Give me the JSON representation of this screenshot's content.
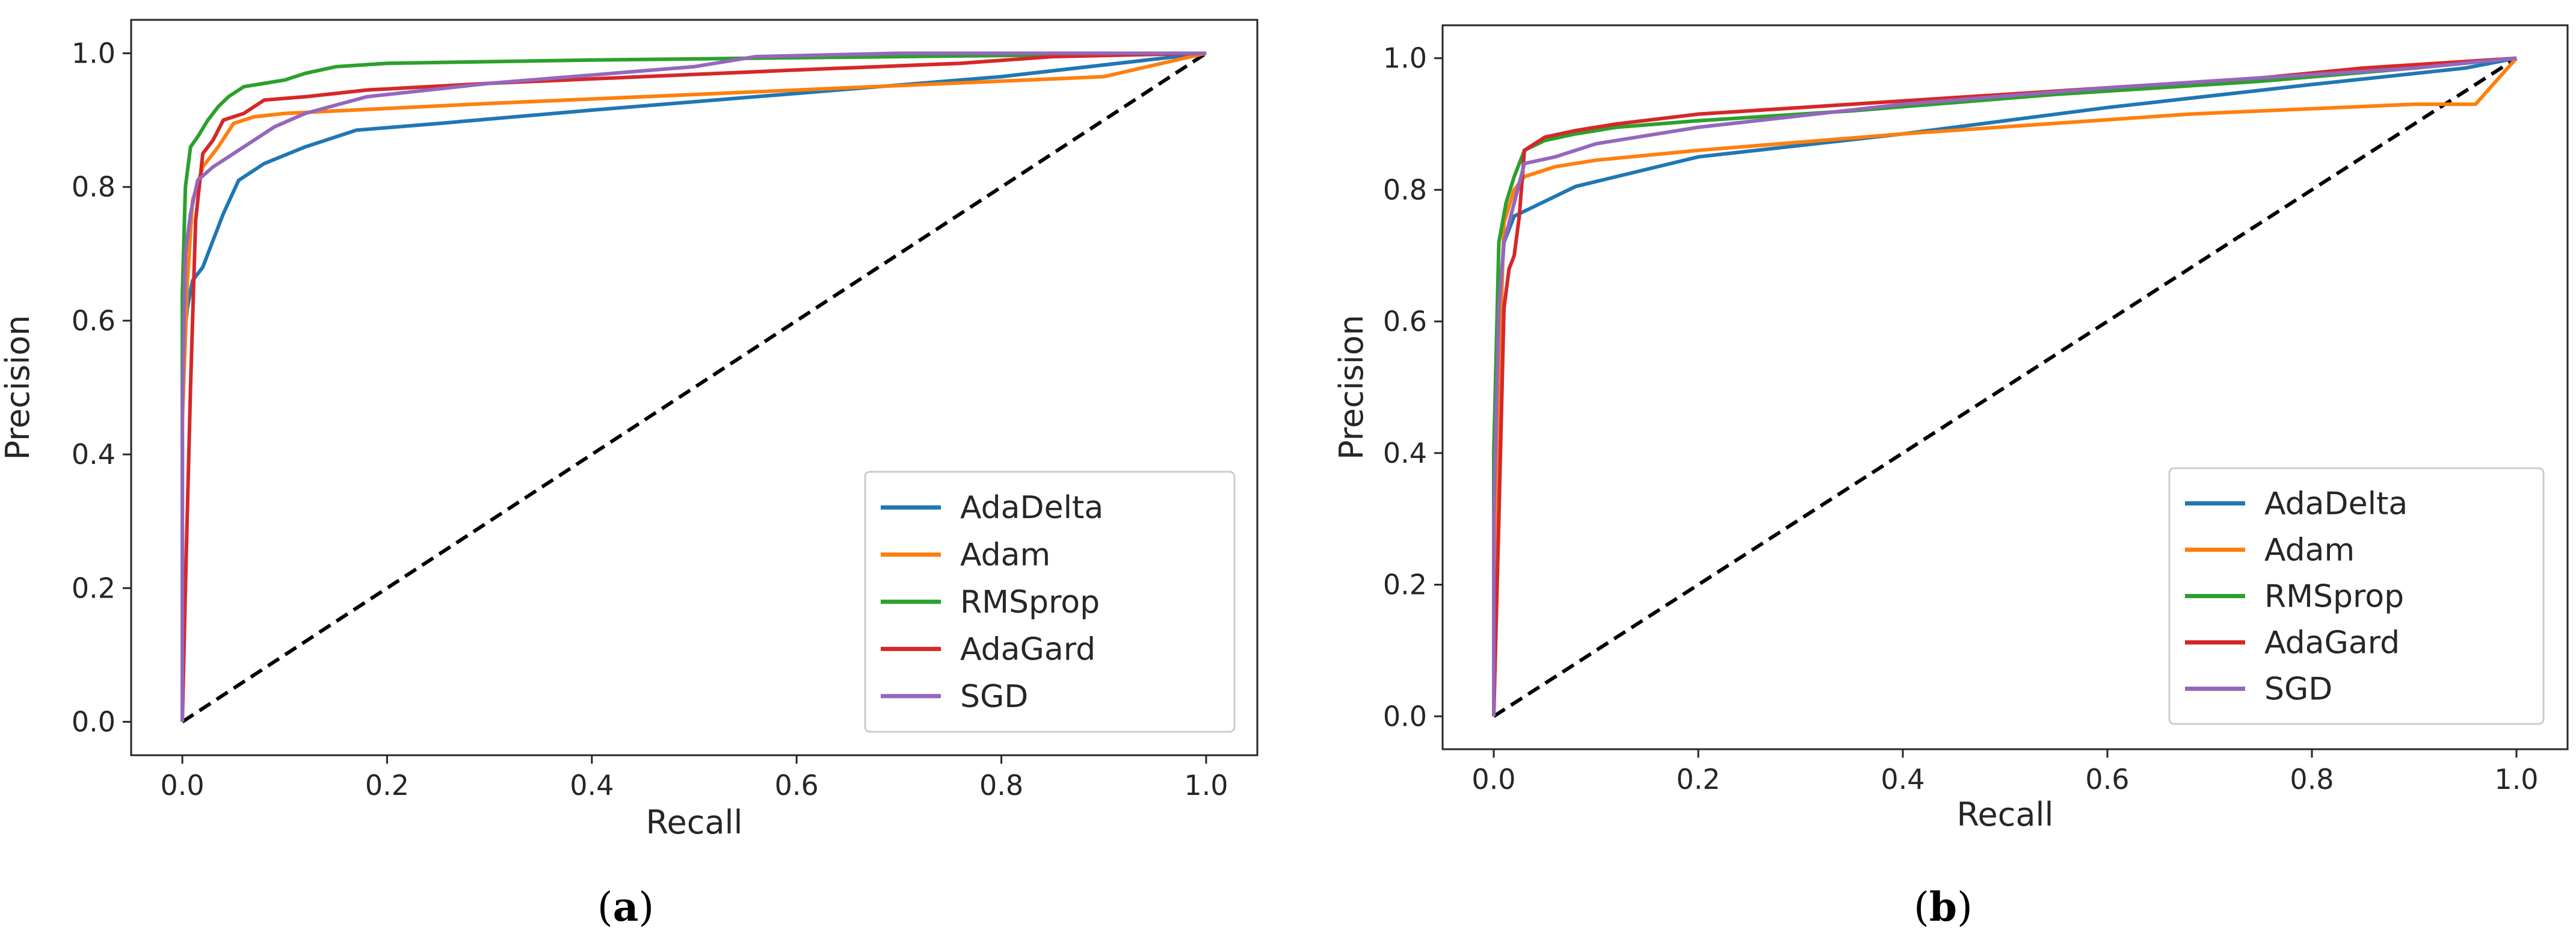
{
  "figure": {
    "chart_data": [
      {
        "type": "line",
        "caption_open": "(",
        "caption_letter": "a",
        "caption_close": ")",
        "xlabel": "Recall",
        "ylabel": "Precision",
        "xlim": [
          -0.05,
          1.05
        ],
        "ylim": [
          -0.05,
          1.05
        ],
        "xticks": [
          0.0,
          0.2,
          0.4,
          0.6,
          0.8,
          1.0
        ],
        "yticks": [
          0.0,
          0.2,
          0.4,
          0.6,
          0.8,
          1.0
        ],
        "xtick_labels": [
          "0.0",
          "0.2",
          "0.4",
          "0.6",
          "0.8",
          "1.0"
        ],
        "ytick_labels": [
          "0.0",
          "0.2",
          "0.4",
          "0.6",
          "0.8",
          "1.0"
        ],
        "legend_position": "lower-right",
        "diagonal": {
          "x": [
            0,
            1
          ],
          "y": [
            0,
            1
          ],
          "color": "#000000",
          "style": "dashed"
        },
        "series": [
          {
            "name": "AdaDelta",
            "color": "#1f77b4",
            "x": [
              0.0,
              0.0,
              0.005,
              0.01,
              0.02,
              0.03,
              0.04,
              0.055,
              0.08,
              0.12,
              0.17,
              0.25,
              0.4,
              0.6,
              0.8,
              1.0
            ],
            "y": [
              0.0,
              0.55,
              0.62,
              0.66,
              0.68,
              0.72,
              0.76,
              0.81,
              0.835,
              0.86,
              0.885,
              0.895,
              0.915,
              0.94,
              0.965,
              1.0
            ]
          },
          {
            "name": "Adam",
            "color": "#ff7f0e",
            "x": [
              0.0,
              0.0,
              0.005,
              0.01,
              0.02,
              0.035,
              0.05,
              0.07,
              0.1,
              0.3,
              0.6,
              0.9,
              1.0
            ],
            "y": [
              0.0,
              0.45,
              0.66,
              0.78,
              0.83,
              0.86,
              0.895,
              0.905,
              0.91,
              0.925,
              0.945,
              0.965,
              1.0
            ]
          },
          {
            "name": "RMSprop",
            "color": "#2ca02c",
            "x": [
              0.0,
              0.0,
              0.003,
              0.008,
              0.015,
              0.025,
              0.035,
              0.045,
              0.06,
              0.08,
              0.1,
              0.12,
              0.15,
              0.2,
              0.4,
              0.7,
              1.0
            ],
            "y": [
              0.0,
              0.64,
              0.8,
              0.86,
              0.875,
              0.9,
              0.92,
              0.935,
              0.95,
              0.955,
              0.96,
              0.97,
              0.98,
              0.985,
              0.99,
              0.995,
              1.0
            ]
          },
          {
            "name": "AdaGard",
            "color": "#d62728",
            "x": [
              0.0,
              0.003,
              0.008,
              0.013,
              0.02,
              0.03,
              0.04,
              0.06,
              0.08,
              0.12,
              0.18,
              0.3,
              0.45,
              0.6,
              0.76,
              0.85,
              1.0
            ],
            "y": [
              0.0,
              0.2,
              0.5,
              0.75,
              0.85,
              0.87,
              0.9,
              0.91,
              0.93,
              0.935,
              0.945,
              0.955,
              0.965,
              0.975,
              0.985,
              0.995,
              1.0
            ]
          },
          {
            "name": "SGD",
            "color": "#9467bd",
            "x": [
              0.0,
              0.0,
              0.003,
              0.008,
              0.015,
              0.03,
              0.05,
              0.07,
              0.09,
              0.12,
              0.18,
              0.3,
              0.5,
              0.56,
              0.7,
              1.0
            ],
            "y": [
              0.0,
              0.48,
              0.7,
              0.76,
              0.81,
              0.83,
              0.85,
              0.87,
              0.89,
              0.91,
              0.935,
              0.955,
              0.98,
              0.995,
              1.0,
              1.0
            ]
          }
        ]
      },
      {
        "type": "line",
        "caption_open": "(",
        "caption_letter": "b",
        "caption_close": ")",
        "xlabel": "Recall",
        "ylabel": "Precision",
        "xlim": [
          -0.05,
          1.05
        ],
        "ylim": [
          -0.05,
          1.05
        ],
        "xticks": [
          0.0,
          0.2,
          0.4,
          0.6,
          0.8,
          1.0
        ],
        "yticks": [
          0.0,
          0.2,
          0.4,
          0.6,
          0.8,
          1.0
        ],
        "xtick_labels": [
          "0.0",
          "0.2",
          "0.4",
          "0.6",
          "0.8",
          "1.0"
        ],
        "ytick_labels": [
          "0.0",
          "0.2",
          "0.4",
          "0.6",
          "0.8",
          "1.0"
        ],
        "legend_position": "lower-right",
        "diagonal": {
          "x": [
            0,
            1
          ],
          "y": [
            0,
            1
          ],
          "color": "#000000",
          "style": "dashed"
        },
        "series": [
          {
            "name": "AdaDelta",
            "color": "#1f77b4",
            "x": [
              0.0,
              0.0,
              0.005,
              0.01,
              0.02,
              0.04,
              0.08,
              0.2,
              0.4,
              0.6,
              0.8,
              0.95,
              1.0
            ],
            "y": [
              0.0,
              0.28,
              0.6,
              0.72,
              0.76,
              0.775,
              0.805,
              0.85,
              0.885,
              0.925,
              0.96,
              0.985,
              1.0
            ]
          },
          {
            "name": "Adam",
            "color": "#ff7f0e",
            "x": [
              0.0,
              0.005,
              0.01,
              0.02,
              0.03,
              0.06,
              0.1,
              0.2,
              0.4,
              0.68,
              0.9,
              0.96,
              1.0
            ],
            "y": [
              0.0,
              0.5,
              0.75,
              0.8,
              0.82,
              0.835,
              0.845,
              0.86,
              0.885,
              0.915,
              0.93,
              0.93,
              1.0
            ]
          },
          {
            "name": "RMSprop",
            "color": "#2ca02c",
            "x": [
              0.0,
              0.0,
              0.005,
              0.012,
              0.02,
              0.03,
              0.05,
              0.08,
              0.12,
              0.2,
              0.35,
              0.55,
              0.75,
              0.9,
              1.0
            ],
            "y": [
              0.0,
              0.4,
              0.72,
              0.78,
              0.82,
              0.86,
              0.875,
              0.885,
              0.895,
              0.905,
              0.92,
              0.945,
              0.965,
              0.985,
              1.0
            ]
          },
          {
            "name": "AdaGard",
            "color": "#d62728",
            "x": [
              0.0,
              0.005,
              0.01,
              0.015,
              0.02,
              0.025,
              0.03,
              0.05,
              0.08,
              0.12,
              0.2,
              0.3,
              0.45,
              0.6,
              0.75,
              0.85,
              1.0
            ],
            "y": [
              0.0,
              0.3,
              0.62,
              0.68,
              0.7,
              0.76,
              0.86,
              0.88,
              0.89,
              0.9,
              0.915,
              0.925,
              0.94,
              0.955,
              0.97,
              0.985,
              1.0
            ]
          },
          {
            "name": "SGD",
            "color": "#9467bd",
            "x": [
              0.0,
              0.0,
              0.005,
              0.01,
              0.02,
              0.03,
              0.06,
              0.1,
              0.2,
              0.4,
              0.6,
              0.8,
              0.9,
              1.0
            ],
            "y": [
              0.0,
              0.3,
              0.62,
              0.72,
              0.78,
              0.84,
              0.85,
              0.87,
              0.895,
              0.93,
              0.955,
              0.975,
              0.985,
              1.0
            ]
          }
        ]
      }
    ]
  }
}
